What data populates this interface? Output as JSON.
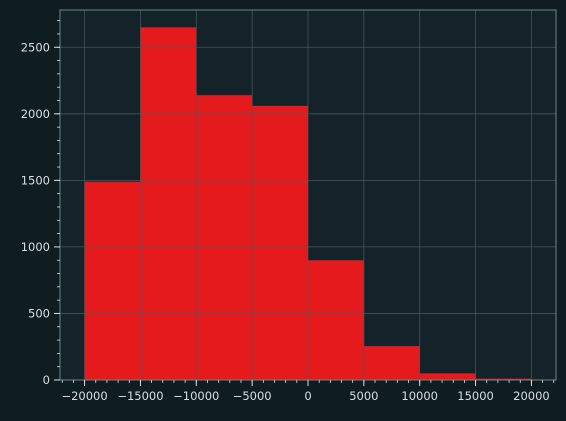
{
  "chart_data": {
    "type": "bar",
    "title": "",
    "xlabel": "",
    "ylabel": "",
    "bin_edges": [
      -20000,
      -15000,
      -10000,
      -5000,
      0,
      5000,
      10000,
      15000,
      20000
    ],
    "values": [
      1490,
      2650,
      2140,
      2060,
      900,
      255,
      50,
      10
    ],
    "xlim": [
      -22200,
      22200
    ],
    "ylim": [
      0,
      2780
    ],
    "x_major_ticks": [
      -20000,
      -15000,
      -10000,
      -5000,
      0,
      5000,
      10000,
      15000,
      20000
    ],
    "x_tick_labels": [
      "−20000",
      "−15000",
      "−10000",
      "−5000",
      "0",
      "5000",
      "10000",
      "15000",
      "20000"
    ],
    "x_minor_step": 1000,
    "y_major_ticks": [
      0,
      500,
      1000,
      1500,
      2000,
      2500
    ],
    "y_tick_labels": [
      "0",
      "500",
      "1000",
      "1500",
      "2000",
      "2500"
    ],
    "y_minor_step": 100,
    "grid": true,
    "colors": {
      "background": "#0f1d23",
      "plot_area": "#14232a",
      "bar": "#e41a1c",
      "grid": "#4a5c63",
      "axis": "#6f8289",
      "text": "#d9dee1"
    }
  }
}
